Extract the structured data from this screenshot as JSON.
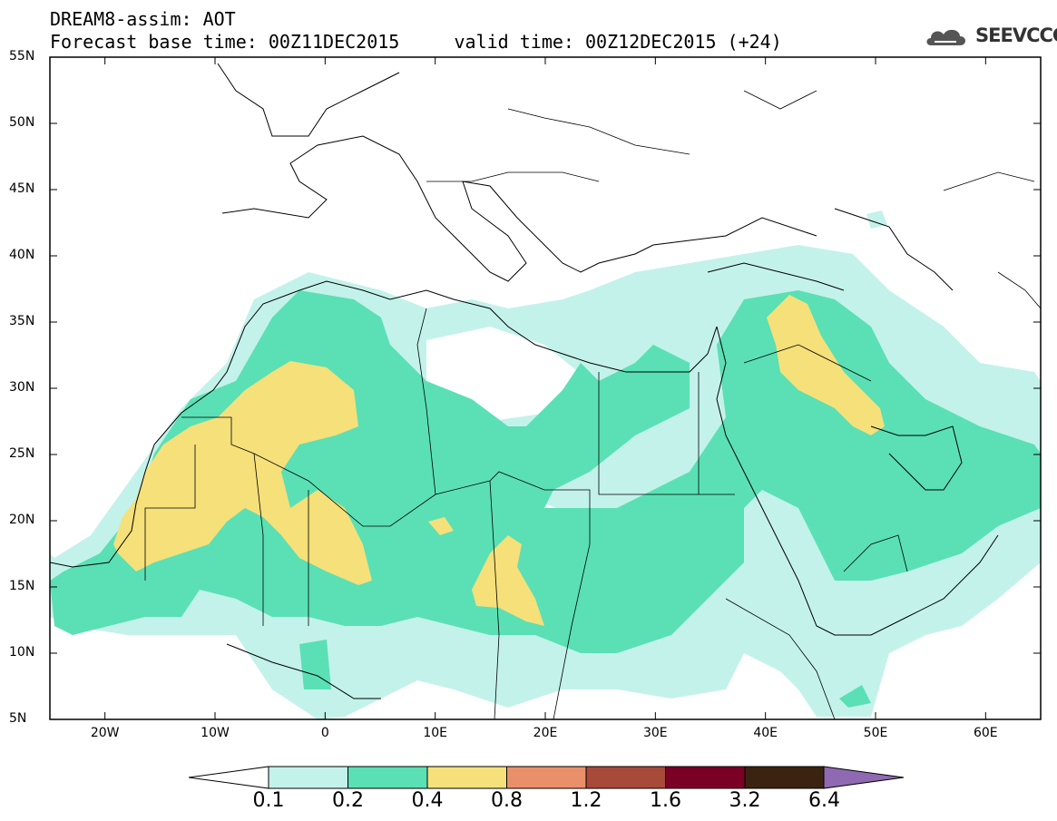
{
  "header": {
    "title": "DREAM8-assim: AOT",
    "subtitle": "Forecast base time: 00Z11DEC2015     valid time: 00Z12DEC2015 (+24)"
  },
  "logo": {
    "text": "SEEVCCC",
    "icon": "cloud-icon"
  },
  "map": {
    "lon_range": [
      -25,
      65
    ],
    "lat_range": [
      5,
      55
    ],
    "lat_ticks": [
      {
        "value": 55,
        "label": "55N"
      },
      {
        "value": 50,
        "label": "50N"
      },
      {
        "value": 45,
        "label": "45N"
      },
      {
        "value": 40,
        "label": "40N"
      },
      {
        "value": 35,
        "label": "35N"
      },
      {
        "value": 30,
        "label": "30N"
      },
      {
        "value": 25,
        "label": "25N"
      },
      {
        "value": 20,
        "label": "20N"
      },
      {
        "value": 15,
        "label": "15N"
      },
      {
        "value": 10,
        "label": "10N"
      },
      {
        "value": 5,
        "label": "5N"
      }
    ],
    "lon_ticks": [
      {
        "value": -20,
        "label": "20W"
      },
      {
        "value": -10,
        "label": "10W"
      },
      {
        "value": 0,
        "label": "0"
      },
      {
        "value": 10,
        "label": "10E"
      },
      {
        "value": 20,
        "label": "20E"
      },
      {
        "value": 30,
        "label": "30E"
      },
      {
        "value": 40,
        "label": "40E"
      },
      {
        "value": 50,
        "label": "50E"
      },
      {
        "value": 60,
        "label": "60E"
      }
    ]
  },
  "colorbar": {
    "levels": [
      "0.1",
      "0.2",
      "0.4",
      "0.8",
      "1.2",
      "1.6",
      "3.2",
      "6.4"
    ],
    "colors": [
      "#c3f2eb",
      "#5ae0b4",
      "#f5e07a",
      "#e9906a",
      "#a84a3a",
      "#7a0026",
      "#3a2310",
      "#8f6ab2"
    ],
    "under_color": "#ffffff"
  },
  "colors": {
    "level_0_1": "#c3f2eb",
    "level_0_2": "#5ae0b4",
    "level_0_4": "#f5e07a"
  }
}
